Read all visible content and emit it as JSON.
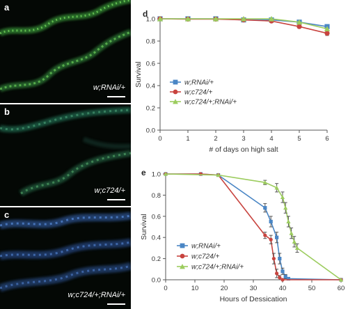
{
  "micrographs": [
    {
      "letter": "a",
      "genotype": "w;RNAi/+"
    },
    {
      "letter": "b",
      "genotype": "w;c724/+"
    },
    {
      "letter": "c",
      "genotype": "w;c724/+;RNAi/+"
    }
  ],
  "chart_data": [
    {
      "panel": "d",
      "type": "line",
      "xlabel": "# of days on high salt",
      "ylabel": "Survival",
      "xlim": [
        0,
        6
      ],
      "ylim": [
        0,
        1.0
      ],
      "xticks": [
        "0",
        "1",
        "2",
        "3",
        "4",
        "5",
        "6"
      ],
      "yticks": [
        "0.0",
        "0.2",
        "0.4",
        "0.6",
        "0.8",
        "1.0"
      ],
      "legend_position": "center-left",
      "series": [
        {
          "name": "w;RNAi/+",
          "color": "#4a86c5",
          "marker": "square",
          "x": [
            0,
            1,
            2,
            3,
            4,
            5,
            6
          ],
          "y": [
            1.0,
            1.0,
            1.0,
            0.99,
            0.99,
            0.97,
            0.93
          ]
        },
        {
          "name": "w;c724/+",
          "color": "#c8443f",
          "marker": "circle",
          "x": [
            0,
            1,
            2,
            3,
            4,
            5,
            6
          ],
          "y": [
            1.0,
            0.997,
            0.997,
            0.99,
            0.98,
            0.93,
            0.87
          ],
          "err": [
            0,
            0,
            0,
            0,
            0,
            0.015,
            0.02
          ]
        },
        {
          "name": "w;c724/+;RNAi/+",
          "color": "#9ccc5e",
          "marker": "triangle",
          "x": [
            0,
            1,
            2,
            3,
            4,
            5,
            6
          ],
          "y": [
            1.0,
            1.0,
            1.0,
            1.0,
            1.0,
            0.97,
            0.91
          ]
        }
      ]
    },
    {
      "panel": "e",
      "type": "line",
      "xlabel": "Hours of Dessication",
      "ylabel": "Survival",
      "xlim": [
        0,
        60
      ],
      "ylim": [
        0,
        1.0
      ],
      "xticks": [
        "0",
        "10",
        "20",
        "30",
        "40",
        "50",
        "60"
      ],
      "yticks": [
        "0.0",
        "0.2",
        "0.4",
        "0.6",
        "0.8",
        "1.0"
      ],
      "legend_position": "bottom-left",
      "series": [
        {
          "name": "w;RNAi/+",
          "color": "#4a86c5",
          "marker": "square",
          "x": [
            0,
            12,
            18,
            34,
            36,
            38,
            39,
            40,
            41,
            42,
            60
          ],
          "y": [
            1.0,
            1.0,
            0.99,
            0.68,
            0.55,
            0.4,
            0.2,
            0.08,
            0.03,
            0.01,
            0.0
          ],
          "err": [
            0,
            0,
            0,
            0.04,
            0.05,
            0.05,
            0.05,
            0.03,
            0.02,
            0.01,
            0
          ]
        },
        {
          "name": "w;c724/+",
          "color": "#c8443f",
          "marker": "circle",
          "x": [
            0,
            12,
            18,
            34,
            36,
            37,
            38,
            39,
            40,
            60
          ],
          "y": [
            1.0,
            1.0,
            0.99,
            0.42,
            0.38,
            0.2,
            0.06,
            0.02,
            0.0,
            0.0
          ],
          "err": [
            0,
            0,
            0,
            0.03,
            0.04,
            0.05,
            0.04,
            0.02,
            0,
            0
          ]
        },
        {
          "name": "w;c724/+;RNAi/+",
          "color": "#9ccc5e",
          "marker": "triangle",
          "x": [
            0,
            18,
            34,
            38,
            40,
            41,
            42,
            43,
            44,
            45,
            60
          ],
          "y": [
            1.0,
            0.99,
            0.92,
            0.87,
            0.78,
            0.68,
            0.55,
            0.44,
            0.36,
            0.3,
            0.0
          ],
          "err": [
            0,
            0,
            0.02,
            0.04,
            0.05,
            0.05,
            0.05,
            0.05,
            0.05,
            0.04,
            0
          ]
        }
      ]
    }
  ]
}
